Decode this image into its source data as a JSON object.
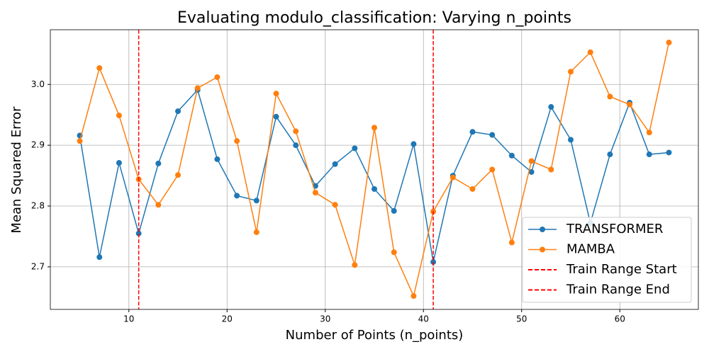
{
  "chart_data": {
    "type": "line",
    "title": "Evaluating modulo_classification: Varying n_points",
    "x_label": "Number of Points (n_points)",
    "y_label": "Mean Squared Error",
    "x": [
      5,
      7,
      9,
      11,
      13,
      15,
      17,
      19,
      21,
      23,
      25,
      27,
      29,
      31,
      33,
      35,
      37,
      39,
      41,
      43,
      45,
      47,
      49,
      51,
      53,
      55,
      57,
      59,
      61,
      63,
      65
    ],
    "series": [
      {
        "name": "TRANSFORMER",
        "color": "#1f77b4",
        "values": [
          2.916,
          2.716,
          2.871,
          2.755,
          2.87,
          2.956,
          2.991,
          2.877,
          2.817,
          2.809,
          2.947,
          2.9,
          2.833,
          2.869,
          2.895,
          2.828,
          2.792,
          2.902,
          2.708,
          2.85,
          2.922,
          2.917,
          2.883,
          2.856,
          2.963,
          2.909,
          2.772,
          2.885,
          2.97,
          2.885,
          2.888
        ]
      },
      {
        "name": "MAMBA",
        "color": "#ff7f0e",
        "values": [
          2.907,
          3.027,
          2.949,
          2.844,
          2.802,
          2.851,
          2.994,
          3.012,
          2.907,
          2.757,
          2.985,
          2.923,
          2.822,
          2.802,
          2.703,
          2.929,
          2.724,
          2.652,
          2.791,
          2.847,
          2.828,
          2.86,
          2.74,
          2.874,
          2.86,
          3.021,
          3.053,
          2.98,
          2.967,
          2.921,
          3.069
        ]
      }
    ],
    "vlines": [
      {
        "name": "Train Range Start",
        "x": 11,
        "color": "#ff0000"
      },
      {
        "name": "Train Range End",
        "x": 41,
        "color": "#ff0000"
      }
    ],
    "xlim": [
      2,
      68
    ],
    "ylim": [
      2.63,
      3.09
    ],
    "xticks": [
      10,
      20,
      30,
      40,
      50,
      60
    ],
    "yticks": [
      2.7,
      2.8,
      2.9,
      {
        "value": 3.0,
        "label": "3.0"
      }
    ],
    "grid": true,
    "legend": "lower right"
  }
}
